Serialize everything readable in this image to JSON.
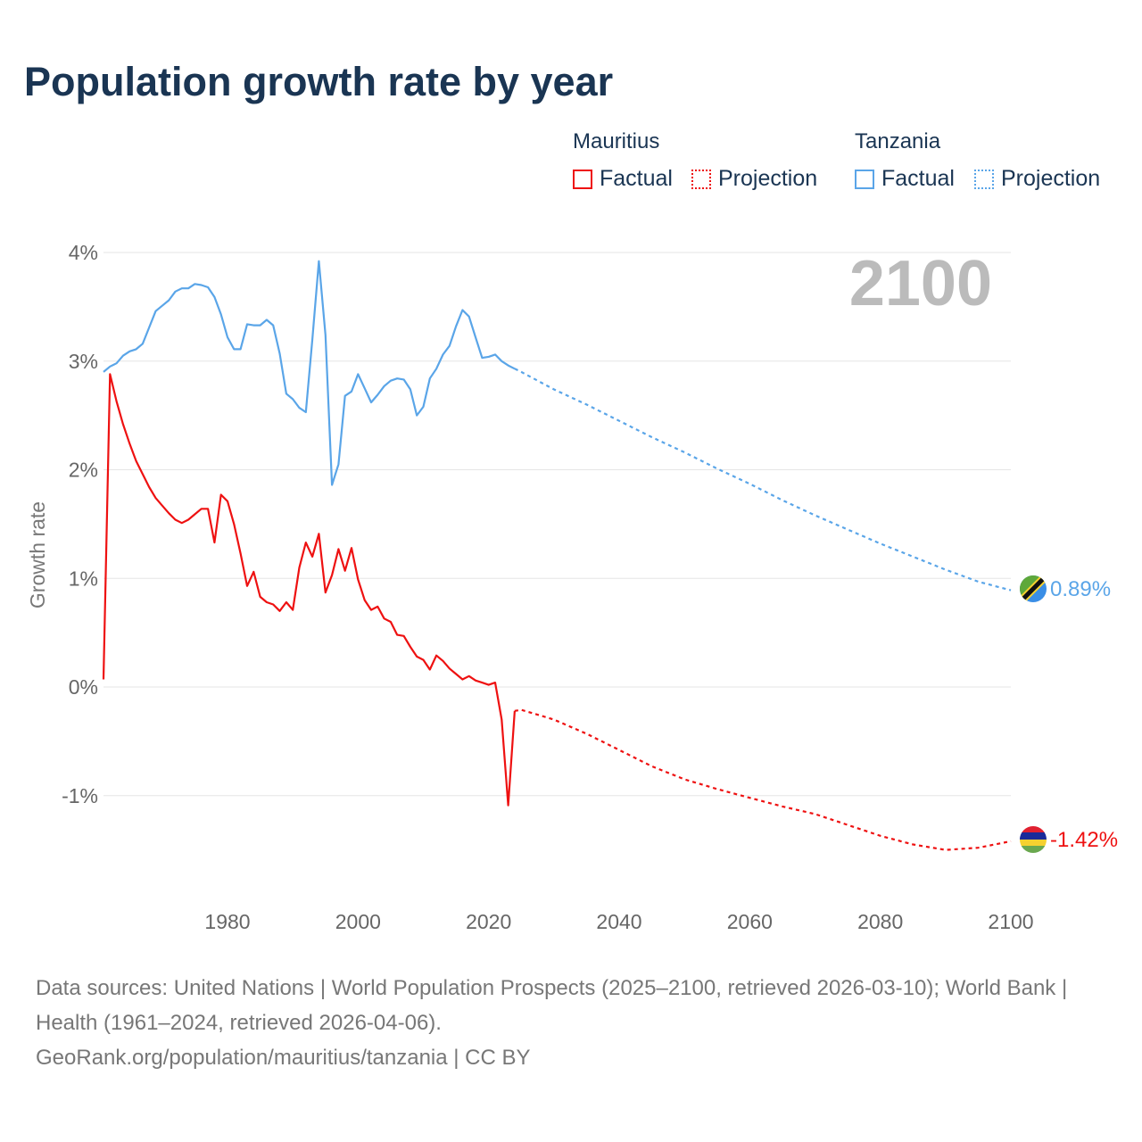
{
  "title": "Population growth rate by year",
  "legend": {
    "groups": [
      {
        "name": "Mauritius",
        "factual": "Factual",
        "projection": "Projection",
        "color": "#ee1111"
      },
      {
        "name": "Tanzania",
        "factual": "Factual",
        "projection": "Projection",
        "color": "#5aa5e8"
      }
    ]
  },
  "year_label": "2100",
  "footer": {
    "sources": "Data sources: United Nations | World Population Prospects (2025–2100, retrieved 2026-03-10); World Bank | Health (1961–2024, retrieved 2026-04-06).",
    "credit": "GeoRank.org/population/mauritius/tanzania | CC BY"
  },
  "chart_data": {
    "type": "line",
    "title": "Population growth rate by year",
    "xlabel": "",
    "ylabel": "Growth rate",
    "xlim": [
      1961,
      2100
    ],
    "ylim": [
      -1.5,
      4
    ],
    "x_ticks": [
      1980,
      2000,
      2020,
      2040,
      2060,
      2080,
      2100
    ],
    "x_tick_labels": [
      "1980",
      "2000",
      "2020",
      "2040",
      "2060",
      "2080",
      "2100"
    ],
    "y_ticks": [
      4,
      3,
      2,
      1,
      0,
      -1
    ],
    "y_tick_labels": [
      "4%",
      "3%",
      "2%",
      "1%",
      "0%",
      "-1%"
    ],
    "grid": true,
    "legend_position": "top-right",
    "series": [
      {
        "name": "Tanzania",
        "color": "#5aa5e8",
        "end_label": "0.89%",
        "factual": {
          "x": [
            1961,
            1962,
            1963,
            1964,
            1965,
            1966,
            1967,
            1968,
            1969,
            1970,
            1971,
            1972,
            1973,
            1974,
            1975,
            1976,
            1977,
            1978,
            1979,
            1980,
            1981,
            1982,
            1983,
            1984,
            1985,
            1986,
            1987,
            1988,
            1989,
            1990,
            1991,
            1992,
            1993,
            1994,
            1995,
            1996,
            1997,
            1998,
            1999,
            2000,
            2001,
            2002,
            2003,
            2004,
            2005,
            2006,
            2007,
            2008,
            2009,
            2010,
            2011,
            2012,
            2013,
            2014,
            2015,
            2016,
            2017,
            2018,
            2019,
            2020,
            2021,
            2022,
            2023,
            2024
          ],
          "y": [
            2.9,
            2.95,
            2.98,
            3.05,
            3.09,
            3.11,
            3.16,
            3.31,
            3.46,
            3.51,
            3.56,
            3.64,
            3.67,
            3.67,
            3.71,
            3.7,
            3.68,
            3.59,
            3.43,
            3.22,
            3.11,
            3.11,
            3.34,
            3.33,
            3.33,
            3.38,
            3.33,
            3.07,
            2.7,
            2.65,
            2.57,
            2.53,
            3.2,
            3.92,
            3.24,
            1.86,
            2.05,
            2.68,
            2.72,
            2.88,
            2.75,
            2.62,
            2.69,
            2.77,
            2.82,
            2.84,
            2.83,
            2.74,
            2.5,
            2.58,
            2.84,
            2.93,
            3.06,
            3.14,
            3.32,
            3.47,
            3.41,
            3.22,
            3.03,
            3.04,
            3.06,
            3.0,
            2.96,
            2.93
          ]
        },
        "projection": {
          "x": [
            2024,
            2025,
            2030,
            2035,
            2040,
            2045,
            2050,
            2055,
            2060,
            2065,
            2070,
            2075,
            2080,
            2085,
            2090,
            2095,
            2100
          ],
          "y": [
            2.93,
            2.9,
            2.74,
            2.6,
            2.45,
            2.3,
            2.16,
            2.01,
            1.87,
            1.72,
            1.58,
            1.45,
            1.32,
            1.2,
            1.08,
            0.97,
            0.89
          ]
        }
      },
      {
        "name": "Mauritius",
        "color": "#ee1111",
        "end_label": "-1.42%",
        "factual": {
          "x": [
            1961,
            1962,
            1963,
            1964,
            1965,
            1966,
            1967,
            1968,
            1969,
            1970,
            1971,
            1972,
            1973,
            1974,
            1975,
            1976,
            1977,
            1978,
            1979,
            1980,
            1981,
            1982,
            1983,
            1984,
            1985,
            1986,
            1987,
            1988,
            1989,
            1990,
            1991,
            1992,
            1993,
            1994,
            1995,
            1996,
            1997,
            1998,
            1999,
            2000,
            2001,
            2002,
            2003,
            2004,
            2005,
            2006,
            2007,
            2008,
            2009,
            2010,
            2011,
            2012,
            2013,
            2014,
            2015,
            2016,
            2017,
            2018,
            2019,
            2020,
            2021,
            2022,
            2023,
            2024
          ],
          "y": [
            0.07,
            2.88,
            2.63,
            2.42,
            2.24,
            2.08,
            1.96,
            1.84,
            1.74,
            1.67,
            1.6,
            1.54,
            1.51,
            1.54,
            1.59,
            1.64,
            1.64,
            1.33,
            1.77,
            1.71,
            1.5,
            1.23,
            0.93,
            1.06,
            0.83,
            0.78,
            0.76,
            0.7,
            0.78,
            0.71,
            1.1,
            1.33,
            1.2,
            1.41,
            0.87,
            1.03,
            1.27,
            1.07,
            1.28,
            0.99,
            0.8,
            0.71,
            0.74,
            0.63,
            0.6,
            0.48,
            0.47,
            0.37,
            0.28,
            0.25,
            0.16,
            0.29,
            0.24,
            0.17,
            0.12,
            0.07,
            0.1,
            0.06,
            0.04,
            0.02,
            0.04,
            -0.3,
            -1.09,
            -0.22
          ]
        },
        "projection": {
          "x": [
            2024,
            2025,
            2030,
            2035,
            2040,
            2045,
            2050,
            2055,
            2060,
            2065,
            2070,
            2075,
            2080,
            2085,
            2090,
            2095,
            2100
          ],
          "y": [
            -0.22,
            -0.21,
            -0.3,
            -0.43,
            -0.58,
            -0.73,
            -0.85,
            -0.94,
            -1.02,
            -1.1,
            -1.17,
            -1.27,
            -1.37,
            -1.45,
            -1.5,
            -1.48,
            -1.42
          ]
        }
      }
    ]
  }
}
